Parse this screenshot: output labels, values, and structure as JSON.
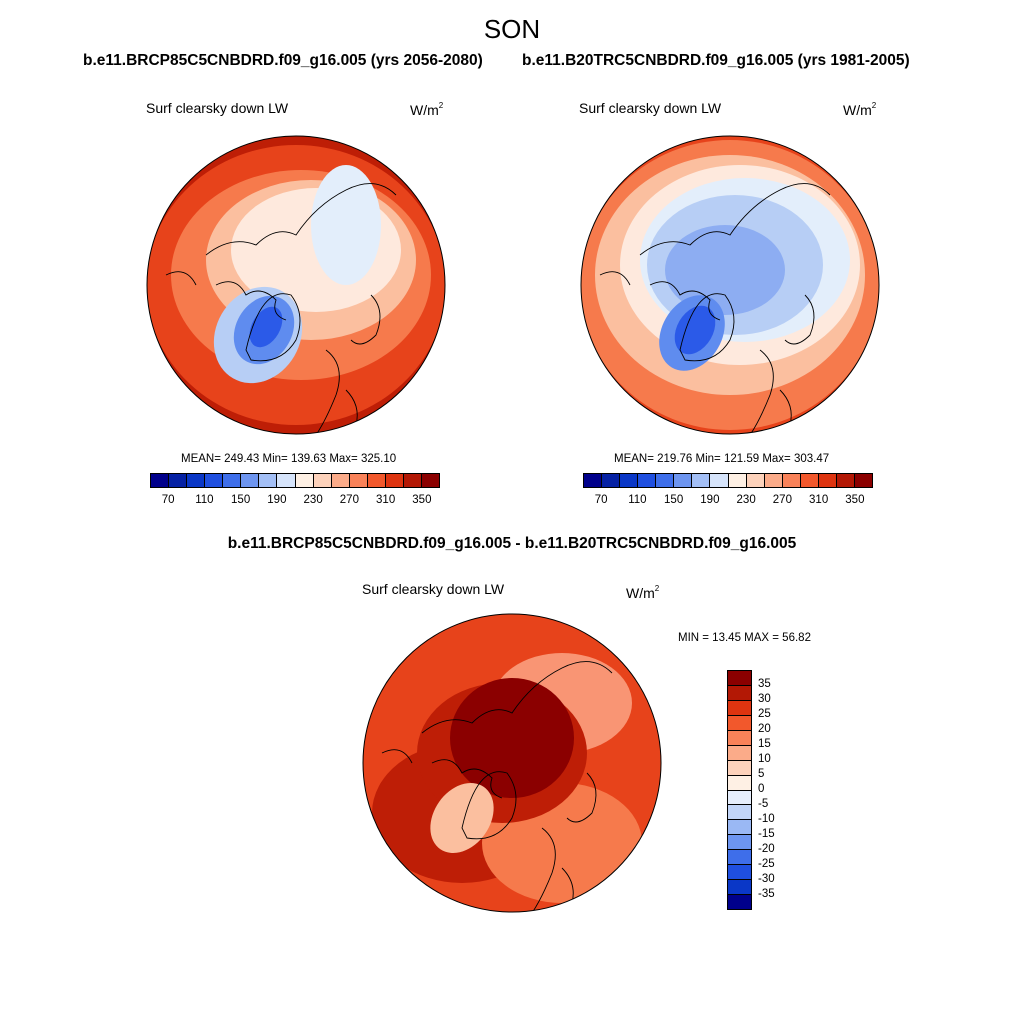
{
  "title": "SON",
  "cases": {
    "left": "b.e11.BRCP85C5CNBDRD.f09_g16.005 (yrs 2056-2080)",
    "right": "b.e11.B20TRC5CNBDRD.f09_g16.005 (yrs 1981-2005)"
  },
  "diff_title": "b.e11.BRCP85C5CNBDRD.f09_g16.005 - b.e11.B20TRC5CNBDRD.f09_g16.005",
  "panels": [
    {
      "variable": "Surf clearsky down LW",
      "units_base": "W/m",
      "units_exp": "2",
      "stats": "MEAN= 249.43  Min= 139.63  Max= 325.10",
      "region_colors": [
        "#be1e06",
        "#e7431b",
        "#f67a4c",
        "#fbbf9f",
        "#fee9dd",
        "#e3eefb",
        "#b7cef5",
        "#5f8cef",
        "#2b5ae8"
      ],
      "colorbar_labels": [
        "70",
        "110",
        "150",
        "190",
        "230",
        "270",
        "310",
        "350"
      ]
    },
    {
      "variable": "Surf clearsky down LW",
      "units_base": "W/m",
      "units_exp": "2",
      "stats": "MEAN= 219.76  Min= 121.59  Max= 303.47",
      "region_colors": [
        "#e7431b",
        "#f67a4c",
        "#fbbf9f",
        "#fee9dd",
        "#e3eefb",
        "#b7cef5",
        "#8dadf2",
        "#5f8cef",
        "#2b5ae8"
      ],
      "colorbar_labels": [
        "70",
        "110",
        "150",
        "190",
        "230",
        "270",
        "310",
        "350"
      ]
    }
  ],
  "diff_panel": {
    "variable": "Surf clearsky down LW",
    "units": "W/m",
    "units_exp": "2",
    "stats": "MIN =  13.45 MAX =  56.82",
    "region_colors": [
      "#e7431b",
      "#be1e06",
      "#f67a4c",
      "#f99574",
      "#be1e06",
      "#8b0000",
      "#fbbf9f"
    ],
    "colorbar_labels": [
      "35",
      "30",
      "25",
      "20",
      "15",
      "10",
      "5",
      "0",
      "-5",
      "-10",
      "-15",
      "-20",
      "-25",
      "-30",
      "-35"
    ]
  },
  "abs_palette": [
    "#00008b",
    "#0521a4",
    "#0a37c7",
    "#1f4fe0",
    "#3e6eea",
    "#6d95f0",
    "#a3bff6",
    "#d6e4fb",
    "#fef0e4",
    "#fdd2bb",
    "#fbab89",
    "#f98259",
    "#f2582c",
    "#de3410",
    "#b31805",
    "#8b0000"
  ],
  "diff_palette": [
    "#8b0000",
    "#b31805",
    "#de3410",
    "#f2582c",
    "#f98259",
    "#fbab89",
    "#fdd2bb",
    "#fef0e4",
    "#e6eefc",
    "#c2d5f8",
    "#9ab8f4",
    "#6d95f0",
    "#3e6eea",
    "#1f4fe0",
    "#0a37c7",
    "#00008b"
  ]
}
